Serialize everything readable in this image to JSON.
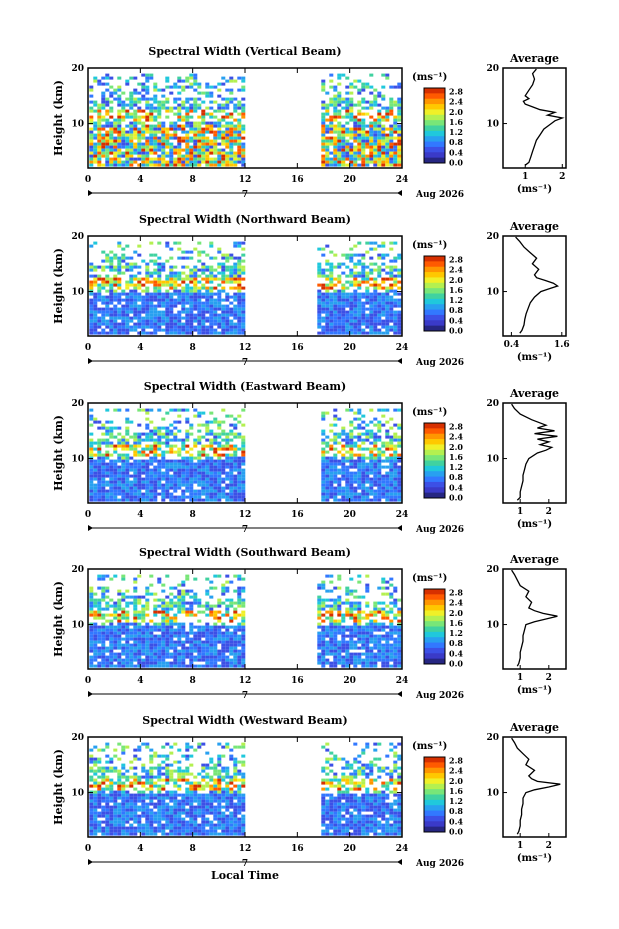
{
  "figure": {
    "xlabel": "Local Time",
    "date_label": "Aug 2026",
    "day_label": "7",
    "unit_label": "(ms⁻¹)",
    "avg_title": "Average"
  },
  "colorbar": {
    "ticks": [
      "2.8",
      "2.4",
      "2.0",
      "1.6",
      "1.2",
      "0.8",
      "0.4",
      "0.0"
    ],
    "colors": [
      "#d73000",
      "#ff5a00",
      "#ff9600",
      "#ffc800",
      "#f0f028",
      "#b4f050",
      "#78e678",
      "#40d2a0",
      "#20c8dc",
      "#28a0f0",
      "#3278ff",
      "#3c50e6",
      "#3a3ac8",
      "#262682"
    ]
  },
  "chart_data": [
    {
      "type": "heatmap",
      "title": "Spectral Width (Vertical Beam)",
      "xlabel": "Local Time",
      "ylabel": "Height (km)",
      "xlim": [
        0,
        24
      ],
      "ylim": [
        2,
        20
      ],
      "xticks": [
        0,
        4,
        8,
        12,
        16,
        20,
        24
      ],
      "yticks": [
        10,
        20
      ],
      "data_gaps_hours": [
        [
          12,
          17.6
        ]
      ],
      "average": {
        "title": "Average",
        "xlabel": "(ms⁻¹)",
        "xticks": [
          1,
          2
        ],
        "xlim": [
          0.4,
          2.1
        ],
        "height_km": [
          2.5,
          3,
          4,
          5,
          6,
          7,
          8,
          9,
          10,
          10.5,
          11,
          11.5,
          12,
          12.5,
          13,
          13.5,
          14,
          14.5,
          15,
          16,
          17,
          18,
          19,
          19.8
        ],
        "value": [
          1.0,
          1.1,
          1.15,
          1.2,
          1.25,
          1.3,
          1.4,
          1.5,
          1.7,
          1.8,
          2.0,
          1.6,
          1.8,
          1.4,
          1.2,
          1.0,
          0.95,
          1.1,
          1.0,
          1.1,
          1.2,
          1.25,
          1.2,
          1.3
        ]
      }
    },
    {
      "type": "heatmap",
      "title": "Spectral Width (Northward Beam)",
      "xlabel": "Local Time",
      "ylabel": "Height (km)",
      "xlim": [
        0,
        24
      ],
      "ylim": [
        2,
        20
      ],
      "xticks": [
        0,
        4,
        8,
        12,
        16,
        20,
        24
      ],
      "yticks": [
        10,
        20
      ],
      "data_gaps_hours": [
        [
          11.8,
          17.5
        ]
      ],
      "average": {
        "title": "Average",
        "xlabel": "(ms⁻¹)",
        "xticks": [
          0.4,
          1.6
        ],
        "xlim": [
          0.2,
          1.7
        ],
        "height_km": [
          2.5,
          3,
          4,
          5,
          6,
          7,
          8,
          9,
          10,
          10.5,
          11,
          11.5,
          12,
          12.5,
          13,
          14,
          15,
          16,
          17,
          18,
          19,
          19.8
        ],
        "value": [
          0.6,
          0.65,
          0.7,
          0.72,
          0.75,
          0.8,
          0.85,
          0.95,
          1.1,
          1.3,
          1.5,
          1.4,
          1.2,
          1.0,
          0.95,
          1.05,
          0.9,
          1.0,
          0.85,
          0.7,
          0.6,
          0.5
        ]
      }
    },
    {
      "type": "heatmap",
      "title": "Spectral Width (Eastward Beam)",
      "xlabel": "Local Time",
      "ylabel": "Height (km)",
      "xlim": [
        0,
        24
      ],
      "ylim": [
        2,
        20
      ],
      "xticks": [
        0,
        4,
        8,
        12,
        16,
        20,
        24
      ],
      "yticks": [
        10,
        20
      ],
      "data_gaps_hours": [
        [
          11.8,
          17.6
        ]
      ],
      "average": {
        "title": "Average",
        "xlabel": "(ms⁻¹)",
        "xticks": [
          1,
          2
        ],
        "xlim": [
          0.4,
          2.6
        ],
        "height_km": [
          2.5,
          3,
          4,
          5,
          6,
          7,
          8,
          9,
          10,
          11,
          11.5,
          12,
          12.5,
          13,
          13.5,
          14,
          14.5,
          15,
          15.5,
          16,
          17,
          18,
          19,
          19.8
        ],
        "value": [
          0.9,
          1.0,
          1.0,
          1.05,
          1.1,
          1.1,
          1.15,
          1.2,
          1.3,
          1.6,
          1.9,
          2.1,
          1.7,
          2.0,
          1.6,
          2.3,
          1.5,
          2.2,
          1.6,
          1.9,
          1.4,
          1.0,
          0.8,
          0.7
        ]
      }
    },
    {
      "type": "heatmap",
      "title": "Spectral Width (Southward Beam)",
      "xlabel": "Local Time",
      "ylabel": "Height (km)",
      "xlim": [
        0,
        24
      ],
      "ylim": [
        2,
        20
      ],
      "xticks": [
        0,
        4,
        8,
        12,
        16,
        20,
        24
      ],
      "yticks": [
        10,
        20
      ],
      "data_gaps_hours": [
        [
          11.8,
          17.5
        ]
      ],
      "average": {
        "title": "Average",
        "xlabel": "(ms⁻¹)",
        "xticks": [
          1,
          2
        ],
        "xlim": [
          0.4,
          2.6
        ],
        "height_km": [
          2.5,
          3,
          4,
          5,
          6,
          7,
          8,
          9,
          10,
          10.5,
          11,
          11.5,
          12,
          12.5,
          13,
          14,
          15,
          16,
          17,
          18,
          19,
          19.8
        ],
        "value": [
          0.9,
          0.95,
          1.0,
          1.0,
          1.05,
          1.1,
          1.1,
          1.15,
          1.2,
          1.5,
          1.9,
          2.3,
          1.8,
          1.5,
          1.3,
          1.4,
          1.2,
          1.3,
          1.0,
          0.9,
          0.8,
          0.7
        ]
      }
    },
    {
      "type": "heatmap",
      "title": "Spectral Width (Westward Beam)",
      "xlabel": "Local Time",
      "ylabel": "Height (km)",
      "xlim": [
        0,
        24
      ],
      "ylim": [
        2,
        20
      ],
      "xticks": [
        0,
        4,
        8,
        12,
        16,
        20,
        24
      ],
      "yticks": [
        10,
        20
      ],
      "data_gaps_hours": [
        [
          11.8,
          17.6
        ]
      ],
      "average": {
        "title": "Average",
        "xlabel": "(ms⁻¹)",
        "xticks": [
          1,
          2
        ],
        "xlim": [
          0.4,
          2.6
        ],
        "height_km": [
          2.5,
          3,
          4,
          5,
          6,
          7,
          8,
          9,
          10,
          10.5,
          11,
          11.5,
          12,
          12.5,
          13,
          14,
          15,
          16,
          17,
          18,
          19,
          19.8
        ],
        "value": [
          0.9,
          0.95,
          1.0,
          1.0,
          1.05,
          1.05,
          1.1,
          1.1,
          1.2,
          1.5,
          2.0,
          2.4,
          1.6,
          1.4,
          1.3,
          1.5,
          1.2,
          1.3,
          1.1,
          0.9,
          0.8,
          0.7
        ]
      }
    }
  ]
}
